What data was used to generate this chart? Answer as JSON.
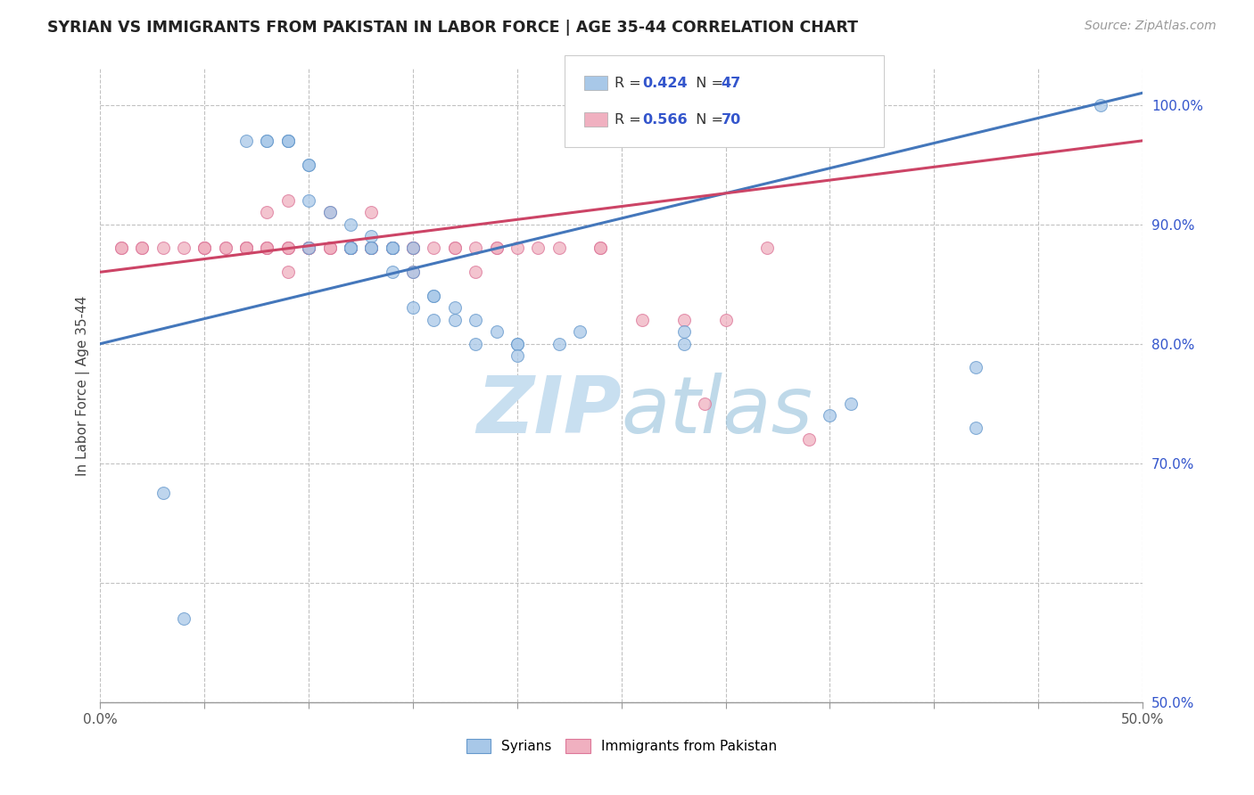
{
  "title": "SYRIAN VS IMMIGRANTS FROM PAKISTAN IN LABOR FORCE | AGE 35-44 CORRELATION CHART",
  "source": "Source: ZipAtlas.com",
  "ylabel": "In Labor Force | Age 35-44",
  "xlim": [
    0.0,
    0.5
  ],
  "ylim": [
    0.5,
    1.03
  ],
  "xtick_positions": [
    0.0,
    0.05,
    0.1,
    0.15,
    0.2,
    0.25,
    0.3,
    0.35,
    0.4,
    0.45,
    0.5
  ],
  "xticklabels_show": {
    "0.0": "0.0%",
    "0.50": "50.0%"
  },
  "ytick_positions": [
    0.5,
    0.6,
    0.7,
    0.8,
    0.9,
    1.0
  ],
  "yticklabels": {
    "0.50": "50.0%",
    "0.60": "",
    "0.70": "70.0%",
    "0.80": "80.0%",
    "0.90": "90.0%",
    "1.00": "100.0%"
  },
  "blue_color": "#a8c8e8",
  "pink_color": "#f0b0c0",
  "blue_edge_color": "#6699cc",
  "pink_edge_color": "#dd7799",
  "blue_line_color": "#4477bb",
  "pink_line_color": "#cc4466",
  "legend_value_color": "#3355cc",
  "watermark_color": "#c8dff0",
  "blue_scatter_x": [
    0.03,
    0.07,
    0.08,
    0.08,
    0.09,
    0.09,
    0.09,
    0.1,
    0.1,
    0.1,
    0.1,
    0.11,
    0.12,
    0.12,
    0.12,
    0.12,
    0.13,
    0.13,
    0.13,
    0.14,
    0.14,
    0.14,
    0.14,
    0.15,
    0.15,
    0.15,
    0.16,
    0.16,
    0.16,
    0.17,
    0.17,
    0.18,
    0.18,
    0.19,
    0.2,
    0.2,
    0.2,
    0.22,
    0.23,
    0.28,
    0.28,
    0.35,
    0.36,
    0.42,
    0.42,
    0.48,
    0.04
  ],
  "blue_scatter_y": [
    0.675,
    0.97,
    0.97,
    0.97,
    0.97,
    0.97,
    0.97,
    0.95,
    0.95,
    0.92,
    0.88,
    0.91,
    0.9,
    0.88,
    0.88,
    0.88,
    0.89,
    0.88,
    0.88,
    0.86,
    0.88,
    0.88,
    0.88,
    0.86,
    0.88,
    0.83,
    0.84,
    0.84,
    0.82,
    0.83,
    0.82,
    0.82,
    0.8,
    0.81,
    0.8,
    0.8,
    0.79,
    0.8,
    0.81,
    0.81,
    0.8,
    0.74,
    0.75,
    0.73,
    0.78,
    1.0,
    0.57
  ],
  "pink_scatter_x": [
    0.01,
    0.01,
    0.02,
    0.02,
    0.03,
    0.04,
    0.05,
    0.05,
    0.05,
    0.06,
    0.06,
    0.07,
    0.07,
    0.07,
    0.07,
    0.08,
    0.08,
    0.08,
    0.08,
    0.09,
    0.09,
    0.09,
    0.09,
    0.09,
    0.1,
    0.1,
    0.1,
    0.1,
    0.1,
    0.11,
    0.11,
    0.11,
    0.11,
    0.12,
    0.12,
    0.12,
    0.12,
    0.12,
    0.13,
    0.13,
    0.13,
    0.13,
    0.13,
    0.14,
    0.14,
    0.14,
    0.15,
    0.15,
    0.15,
    0.15,
    0.16,
    0.17,
    0.17,
    0.18,
    0.18,
    0.19,
    0.19,
    0.2,
    0.21,
    0.22,
    0.24,
    0.24,
    0.25,
    0.26,
    0.28,
    0.29,
    0.3,
    0.32,
    0.34,
    0.36
  ],
  "pink_scatter_y": [
    0.88,
    0.88,
    0.88,
    0.88,
    0.88,
    0.88,
    0.88,
    0.88,
    0.88,
    0.88,
    0.88,
    0.88,
    0.88,
    0.88,
    0.88,
    0.88,
    0.91,
    0.88,
    0.88,
    0.86,
    0.88,
    0.92,
    0.88,
    0.88,
    0.88,
    0.88,
    0.88,
    0.88,
    0.88,
    0.88,
    0.88,
    0.91,
    0.88,
    0.88,
    0.88,
    0.88,
    0.88,
    0.88,
    0.88,
    0.88,
    0.88,
    0.91,
    0.88,
    0.88,
    0.88,
    0.88,
    0.88,
    0.88,
    0.86,
    0.88,
    0.88,
    0.88,
    0.88,
    0.88,
    0.86,
    0.88,
    0.88,
    0.88,
    0.88,
    0.88,
    0.88,
    0.88,
    0.97,
    0.82,
    0.82,
    0.75,
    0.82,
    0.88,
    0.72,
    0.97
  ],
  "blue_trend": [
    0.0,
    0.5,
    0.8,
    1.01
  ],
  "pink_trend": [
    0.0,
    0.5,
    0.86,
    0.97
  ]
}
